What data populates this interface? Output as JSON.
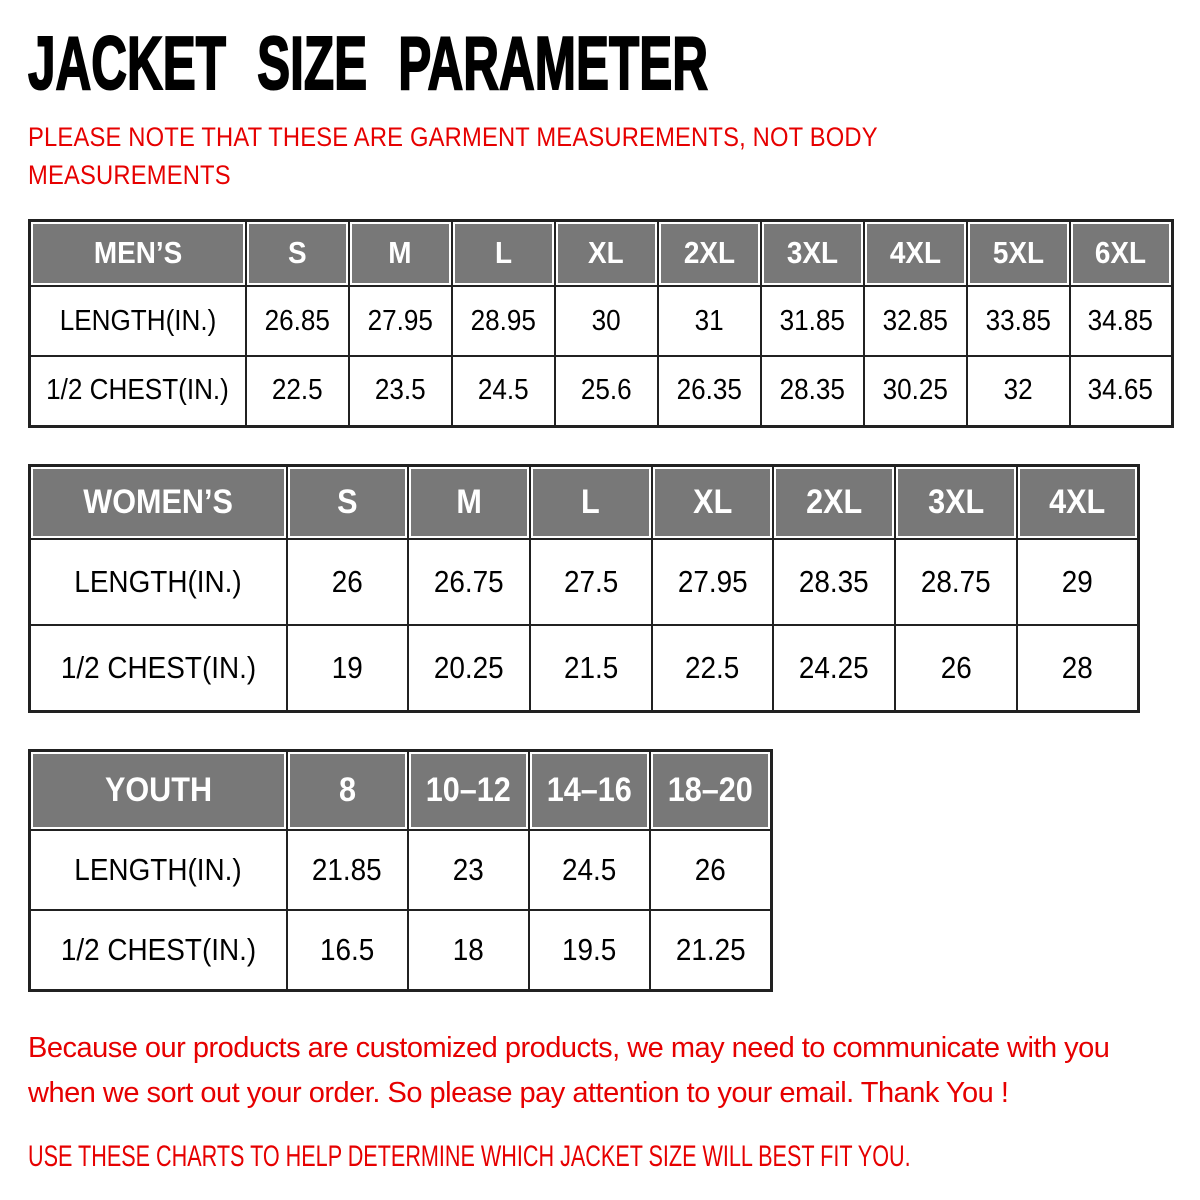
{
  "header": {
    "title": "JACKET SIZE PARAMETER",
    "subtitle": "PLEASE NOTE THAT THESE ARE GARMENT MEASUREMENTS, NOT BODY MEASUREMENTS"
  },
  "tables": [
    {
      "id": "mens",
      "title": "MEN’S",
      "columns": [
        "MEN’S",
        "S",
        "M",
        "L",
        "XL",
        "2XL",
        "3XL",
        "4XL",
        "5XL",
        "6XL"
      ],
      "rows": [
        {
          "label": "LENGTH(IN.)",
          "values": [
            "26.85",
            "27.95",
            "28.95",
            "30",
            "31",
            "31.85",
            "32.85",
            "33.85",
            "34.85"
          ]
        },
        {
          "label": "1/2 CHEST(IN.)",
          "values": [
            "22.5",
            "23.5",
            "24.5",
            "25.6",
            "26.35",
            "28.35",
            "30.25",
            "32",
            "34.65"
          ]
        }
      ]
    },
    {
      "id": "womens",
      "title": "WOMEN’S",
      "columns": [
        "WOMEN’S",
        "S",
        "M",
        "L",
        "XL",
        "2XL",
        "3XL",
        "4XL"
      ],
      "rows": [
        {
          "label": "LENGTH(IN.)",
          "values": [
            "26",
            "26.75",
            "27.5",
            "27.95",
            "28.35",
            "28.75",
            "29"
          ]
        },
        {
          "label": "1/2 CHEST(IN.)",
          "values": [
            "19",
            "20.25",
            "21.5",
            "22.5",
            "24.25",
            "26",
            "28"
          ]
        }
      ]
    },
    {
      "id": "youth",
      "title": "YOUTH",
      "columns": [
        "YOUTH",
        "8",
        "10–12",
        "14–16",
        "18–20"
      ],
      "rows": [
        {
          "label": "LENGTH(IN.)",
          "values": [
            "21.85",
            "23",
            "24.5",
            "26"
          ]
        },
        {
          "label": "1/2 CHEST(IN.)",
          "values": [
            "16.5",
            "18",
            "19.5",
            "21.25"
          ]
        }
      ]
    }
  ],
  "notes": {
    "communication": "Because our products are customized products, we may need to communicate with you when we sort out your order. So please pay attention to your email. Thank You !",
    "usage": "USE THESE CHARTS TO HELP DETERMINE WHICH JACKET SIZE WILL BEST FIT YOU."
  },
  "colors": {
    "accent_red": "#e60000",
    "header_gray": "#787878",
    "header_text": "#ffffff",
    "table_border": "#212121"
  }
}
